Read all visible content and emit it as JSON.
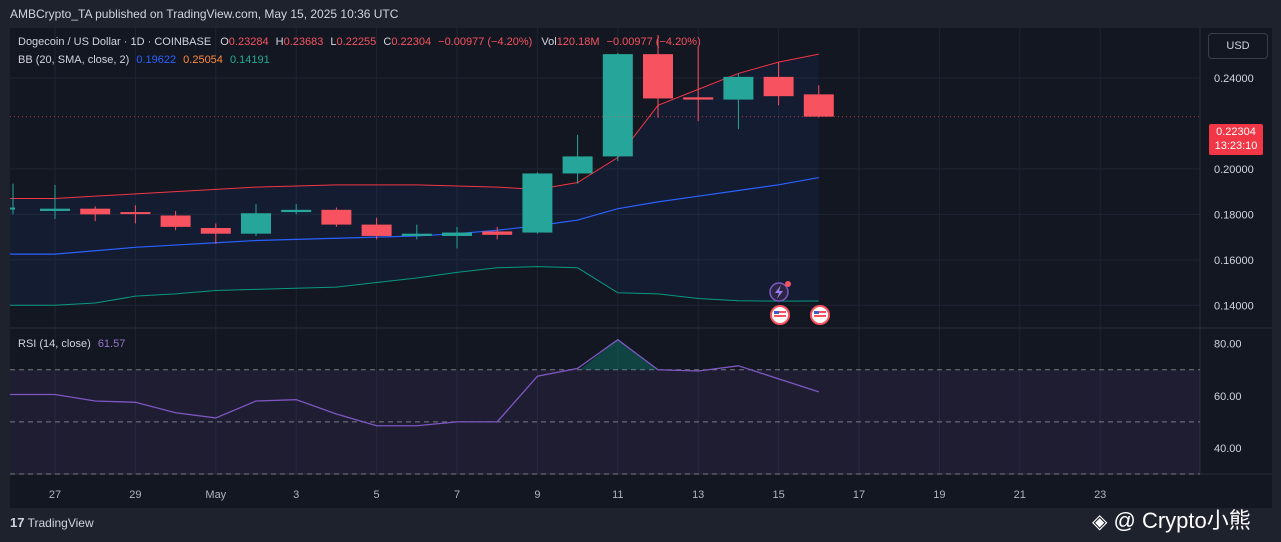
{
  "header": {
    "published_text": "AMBCrypto_TA published on TradingView.com, May 15, 2025 10:36 UTC"
  },
  "main_legend": {
    "symbol": "Dogecoin / US Dollar · 1D · COINBASE",
    "o_label": "O",
    "o_value": "0.23284",
    "h_label": "H",
    "h_value": "0.23683",
    "l_label": "L",
    "l_value": "0.22255",
    "c_label": "C",
    "c_value": "0.22304",
    "change": "−0.00977 (−4.20%)",
    "vol_label": "Vol",
    "vol_value": "120.18M",
    "vol_change": "−0.00977 (−4.20%)"
  },
  "bb_legend": {
    "label": "BB (20, SMA, close, 2)",
    "basis": "0.19622",
    "upper": "0.25054",
    "lower": "0.14191"
  },
  "rsi_legend": {
    "label": "RSI (14, close)",
    "value": "61.57"
  },
  "currency_button": "USD",
  "price_badge": {
    "price": "0.22304",
    "countdown": "13:23:10"
  },
  "footer": {
    "brand": "TradingView"
  },
  "watermark": {
    "text": "@ Crypto小熊"
  },
  "colors": {
    "up": "#26a69a",
    "down": "#f7525f",
    "bb_upper": "#f23645",
    "bb_basis": "#2962ff",
    "bb_lower": "#089981",
    "rsi": "#7e57c2",
    "bg": "#131722"
  },
  "chart_data": [
    {
      "type": "candlestick",
      "price_ticks": [
        "0.14000",
        "0.16000",
        "0.18000",
        "0.20000",
        "0.24000"
      ],
      "date_ticks": [
        "27",
        "29",
        "May",
        "3",
        "5",
        "7",
        "9",
        "11",
        "13",
        "15",
        "17",
        "19",
        "21",
        "23"
      ],
      "ylim": [
        0.13,
        0.262
      ],
      "candles": [
        {
          "o": 0.1815,
          "h": 0.193,
          "l": 0.178,
          "c": 0.1825
        },
        {
          "o": 0.1825,
          "h": 0.1835,
          "l": 0.177,
          "c": 0.18
        },
        {
          "o": 0.181,
          "h": 0.184,
          "l": 0.176,
          "c": 0.1805
        },
        {
          "o": 0.1795,
          "h": 0.1815,
          "l": 0.173,
          "c": 0.1745
        },
        {
          "o": 0.174,
          "h": 0.176,
          "l": 0.167,
          "c": 0.1715
        },
        {
          "o": 0.1715,
          "h": 0.1845,
          "l": 0.1705,
          "c": 0.1805
        },
        {
          "o": 0.181,
          "h": 0.1845,
          "l": 0.18,
          "c": 0.182
        },
        {
          "o": 0.182,
          "h": 0.183,
          "l": 0.1745,
          "c": 0.1755
        },
        {
          "o": 0.1755,
          "h": 0.1785,
          "l": 0.169,
          "c": 0.1705
        },
        {
          "o": 0.1705,
          "h": 0.1755,
          "l": 0.169,
          "c": 0.1715
        },
        {
          "o": 0.1705,
          "h": 0.1745,
          "l": 0.165,
          "c": 0.172
        },
        {
          "o": 0.1725,
          "h": 0.1745,
          "l": 0.169,
          "c": 0.171
        },
        {
          "o": 0.172,
          "h": 0.1985,
          "l": 0.1715,
          "c": 0.198
        },
        {
          "o": 0.198,
          "h": 0.215,
          "l": 0.1935,
          "c": 0.2055
        },
        {
          "o": 0.2055,
          "h": 0.251,
          "l": 0.2035,
          "c": 0.2505
        },
        {
          "o": 0.2505,
          "h": 0.259,
          "l": 0.2225,
          "c": 0.231
        },
        {
          "o": 0.2315,
          "h": 0.2535,
          "l": 0.221,
          "c": 0.2305
        },
        {
          "o": 0.2305,
          "h": 0.242,
          "l": 0.2175,
          "c": 0.2405
        },
        {
          "o": 0.2405,
          "h": 0.247,
          "l": 0.228,
          "c": 0.232
        },
        {
          "o": 0.2328,
          "h": 0.2368,
          "l": 0.2226,
          "c": 0.223
        }
      ],
      "bb": {
        "upper": [
          0.187,
          0.188,
          0.189,
          0.19,
          0.191,
          0.192,
          0.1925,
          0.193,
          0.193,
          0.193,
          0.1925,
          0.192,
          0.191,
          0.194,
          0.205,
          0.228,
          0.235,
          0.242,
          0.247,
          0.2505
        ],
        "basis": [
          0.1625,
          0.164,
          0.1655,
          0.1665,
          0.1675,
          0.1685,
          0.169,
          0.1695,
          0.17,
          0.1705,
          0.1715,
          0.173,
          0.175,
          0.1775,
          0.1825,
          0.1855,
          0.188,
          0.1905,
          0.193,
          0.1962
        ],
        "lower": [
          0.14,
          0.141,
          0.144,
          0.145,
          0.1465,
          0.147,
          0.1475,
          0.148,
          0.15,
          0.152,
          0.1545,
          0.1565,
          0.157,
          0.1565,
          0.1455,
          0.145,
          0.143,
          0.142,
          0.1418,
          0.1419
        ]
      }
    },
    {
      "type": "line",
      "name": "RSI (14, close)",
      "ticks": [
        "40.00",
        "60.00",
        "80.00"
      ],
      "ylim": [
        30,
        86
      ],
      "bands": [
        30,
        50,
        70
      ],
      "values": [
        60.5,
        58.0,
        57.5,
        53.5,
        51.5,
        58.0,
        58.5,
        53.0,
        48.5,
        48.5,
        50.0,
        50.0,
        67.5,
        70.5,
        81.5,
        70.0,
        69.5,
        71.5,
        66.5,
        61.5
      ]
    }
  ]
}
